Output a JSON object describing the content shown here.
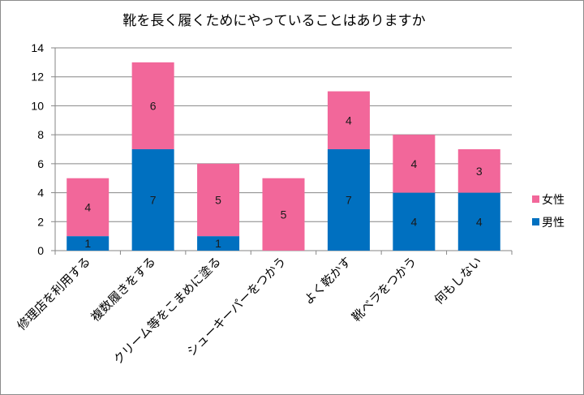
{
  "chart_data": {
    "type": "bar",
    "stacked": true,
    "title": "靴を長く履くためにやっていることはありますか",
    "categories": [
      "修理店を利用する",
      "複数履きをする",
      "クリーム等をこまめに塗る",
      "シューキーパーをつかう",
      "よく乾かす",
      "靴べラをつかう",
      "何もしない"
    ],
    "series": [
      {
        "name": "男性",
        "color": "#0070c0",
        "values": [
          1,
          7,
          1,
          0,
          7,
          4,
          4
        ]
      },
      {
        "name": "女性",
        "color": "#f2679a",
        "values": [
          4,
          6,
          5,
          5,
          4,
          4,
          3
        ]
      }
    ],
    "ylim": [
      0,
      14
    ],
    "yticks": [
      0,
      2,
      4,
      6,
      8,
      10,
      12,
      14
    ],
    "grid": true,
    "legend": "right"
  }
}
